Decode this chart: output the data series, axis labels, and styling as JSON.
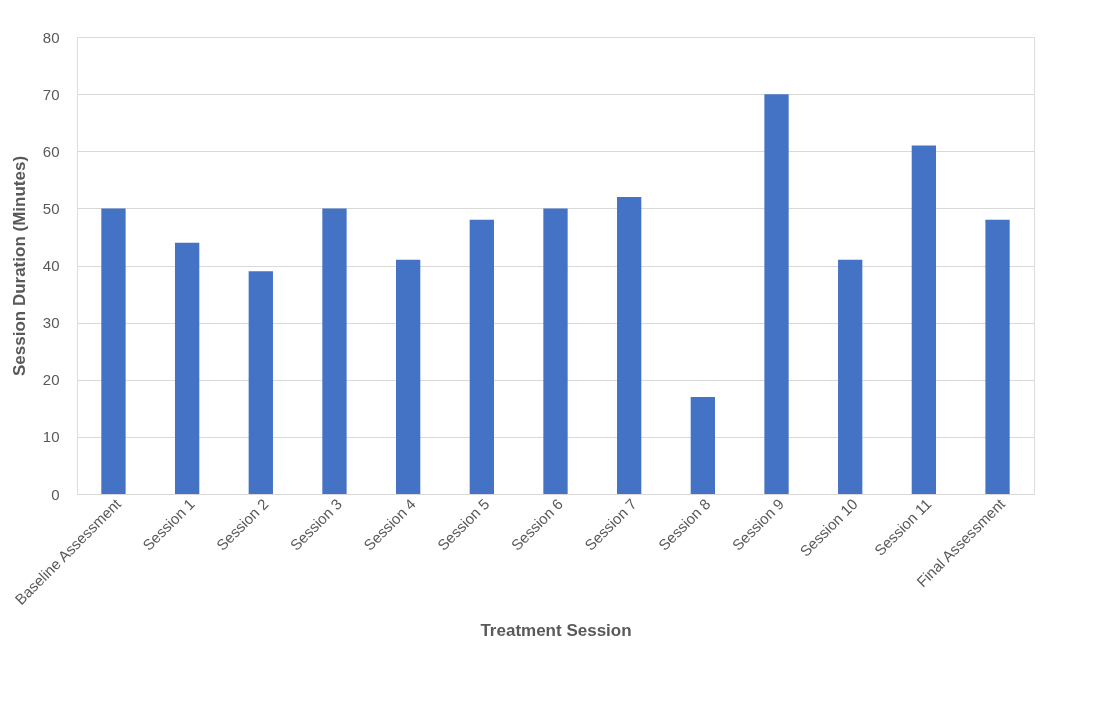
{
  "chart_data": {
    "type": "bar",
    "xlabel": "Treatment Session",
    "ylabel": "Session Duration (Minutes)",
    "categories": [
      "Baseline Assessment",
      "Session 1",
      "Session 2",
      "Session 3",
      "Session 4",
      "Session 5",
      "Session 6",
      "Session 7",
      "Session 8",
      "Session 9",
      "Session 10",
      "Session 11",
      "Final Assessment"
    ],
    "values": [
      50,
      44,
      39,
      50,
      41,
      48,
      50,
      52,
      17,
      70,
      41,
      61,
      48
    ],
    "color": "#4472c4",
    "ylim": [
      0,
      80
    ],
    "yticks": [
      0,
      10,
      20,
      30,
      40,
      50,
      60,
      70,
      80
    ],
    "grid": "y"
  }
}
